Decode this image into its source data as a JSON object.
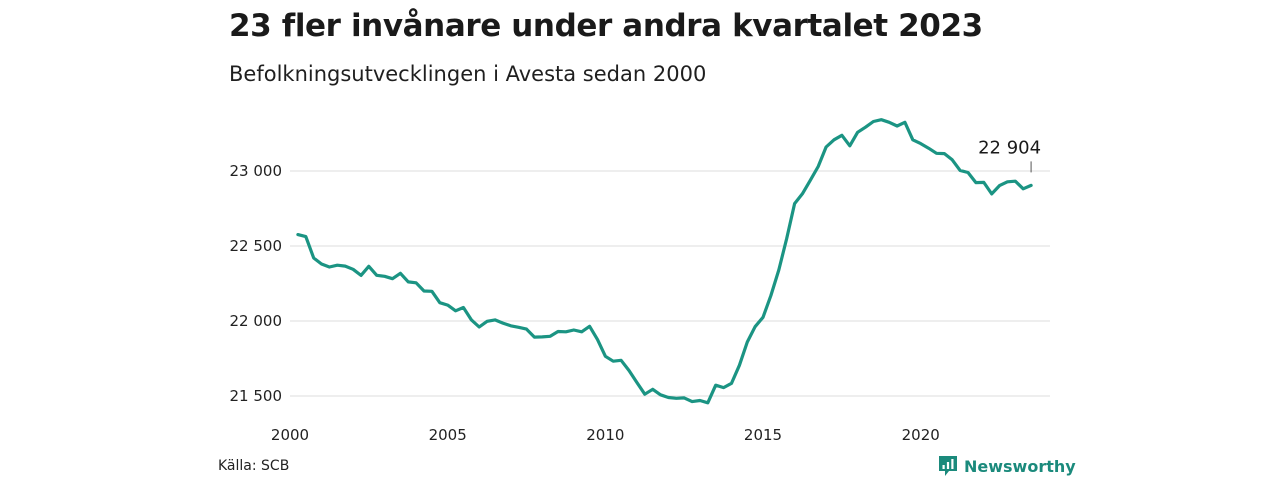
{
  "title": "23 fler invånare under andra kvartalet 2023",
  "subtitle": "Befolkningsutvecklingen i Avesta sedan 2000",
  "source": "Källa: SCB",
  "brand": {
    "name": "Newsworthy",
    "color": "#1b8a7c"
  },
  "colors": {
    "line": "#1b9483",
    "grid": "#dcdcdc"
  },
  "chart_data": {
    "type": "line",
    "title": "23 fler invånare under andra kvartalet 2023",
    "subtitle": "Befolkningsutvecklingen i Avesta sedan 2000",
    "xlabel": "",
    "ylabel": "",
    "xlim": [
      2000,
      2024.1
    ],
    "ylim": [
      21470,
      23400
    ],
    "grid": true,
    "x_ticks": [
      2000,
      2005,
      2010,
      2015,
      2020
    ],
    "y_ticks": [
      21500,
      22000,
      22500,
      23000
    ],
    "x_tick_labels": [
      "2000",
      "2005",
      "2010",
      "2015",
      "2020"
    ],
    "y_tick_labels": [
      "21 500",
      "22 000",
      "22 500",
      "23 000"
    ],
    "annotation": {
      "x": 2023.5,
      "y": 22904,
      "label": "22 904"
    },
    "series": [
      {
        "points": [
          [
            2000.25,
            22576
          ],
          [
            2000.5,
            22563
          ],
          [
            2000.75,
            22420
          ],
          [
            2001.0,
            22380
          ],
          [
            2001.25,
            22360
          ],
          [
            2001.5,
            22372
          ],
          [
            2001.75,
            22366
          ],
          [
            2002.0,
            22345
          ],
          [
            2002.25,
            22304
          ],
          [
            2002.5,
            22365
          ],
          [
            2002.75,
            22305
          ],
          [
            2003.0,
            22298
          ],
          [
            2003.25,
            22282
          ],
          [
            2003.5,
            22318
          ],
          [
            2003.75,
            22261
          ],
          [
            2004.0,
            22255
          ],
          [
            2004.25,
            22200
          ],
          [
            2004.5,
            22198
          ],
          [
            2004.75,
            22122
          ],
          [
            2005.0,
            22106
          ],
          [
            2005.25,
            22068
          ],
          [
            2005.5,
            22090
          ],
          [
            2005.75,
            22008
          ],
          [
            2006.0,
            21960
          ],
          [
            2006.25,
            21998
          ],
          [
            2006.5,
            22007
          ],
          [
            2006.75,
            21986
          ],
          [
            2007.0,
            21968
          ],
          [
            2007.25,
            21958
          ],
          [
            2007.5,
            21946
          ],
          [
            2007.75,
            21893
          ],
          [
            2008.0,
            21894
          ],
          [
            2008.25,
            21898
          ],
          [
            2008.5,
            21930
          ],
          [
            2008.75,
            21928
          ],
          [
            2009.0,
            21940
          ],
          [
            2009.25,
            21928
          ],
          [
            2009.5,
            21965
          ],
          [
            2009.75,
            21876
          ],
          [
            2010.0,
            21765
          ],
          [
            2010.25,
            21732
          ],
          [
            2010.5,
            21738
          ],
          [
            2010.75,
            21670
          ],
          [
            2011.0,
            21590
          ],
          [
            2011.25,
            21512
          ],
          [
            2011.5,
            21545
          ],
          [
            2011.75,
            21508
          ],
          [
            2012.0,
            21490
          ],
          [
            2012.25,
            21485
          ],
          [
            2012.5,
            21487
          ],
          [
            2012.75,
            21463
          ],
          [
            2013.0,
            21470
          ],
          [
            2013.25,
            21455
          ],
          [
            2013.5,
            21572
          ],
          [
            2013.75,
            21556
          ],
          [
            2014.0,
            21585
          ],
          [
            2014.25,
            21705
          ],
          [
            2014.5,
            21860
          ],
          [
            2014.75,
            21962
          ],
          [
            2015.0,
            22025
          ],
          [
            2015.25,
            22170
          ],
          [
            2015.5,
            22340
          ],
          [
            2015.75,
            22550
          ],
          [
            2016.0,
            22783
          ],
          [
            2016.25,
            22848
          ],
          [
            2016.5,
            22938
          ],
          [
            2016.75,
            23030
          ],
          [
            2017.0,
            23160
          ],
          [
            2017.25,
            23208
          ],
          [
            2017.5,
            23238
          ],
          [
            2017.75,
            23168
          ],
          [
            2018.0,
            23258
          ],
          [
            2018.25,
            23292
          ],
          [
            2018.5,
            23330
          ],
          [
            2018.75,
            23342
          ],
          [
            2019.0,
            23325
          ],
          [
            2019.25,
            23300
          ],
          [
            2019.5,
            23325
          ],
          [
            2019.75,
            23208
          ],
          [
            2020.0,
            23183
          ],
          [
            2020.25,
            23152
          ],
          [
            2020.5,
            23118
          ],
          [
            2020.75,
            23116
          ],
          [
            2021.0,
            23075
          ],
          [
            2021.25,
            23004
          ],
          [
            2021.5,
            22990
          ],
          [
            2021.75,
            22923
          ],
          [
            2022.0,
            22924
          ],
          [
            2022.25,
            22847
          ],
          [
            2022.5,
            22903
          ],
          [
            2022.75,
            22928
          ],
          [
            2023.0,
            22932
          ],
          [
            2023.25,
            22881
          ],
          [
            2023.5,
            22904
          ]
        ]
      }
    ]
  }
}
